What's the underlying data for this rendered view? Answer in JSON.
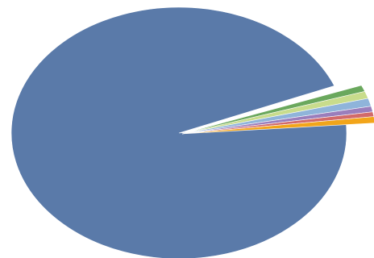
{
  "chart_data": {
    "type": "pie",
    "title": "",
    "legend": "none",
    "exploded": "small-slices",
    "slices": [
      {
        "value": 95.2,
        "color": "#5a7aa9"
      },
      {
        "value": 0.8,
        "color": "#6aa85d"
      },
      {
        "value": 0.9,
        "color": "#c8dc8c"
      },
      {
        "value": 1.0,
        "color": "#8fb4da"
      },
      {
        "value": 0.7,
        "color": "#9a7ebc"
      },
      {
        "value": 0.6,
        "color": "#d26a6a"
      },
      {
        "value": 0.8,
        "color": "#f2a51a"
      }
    ]
  }
}
